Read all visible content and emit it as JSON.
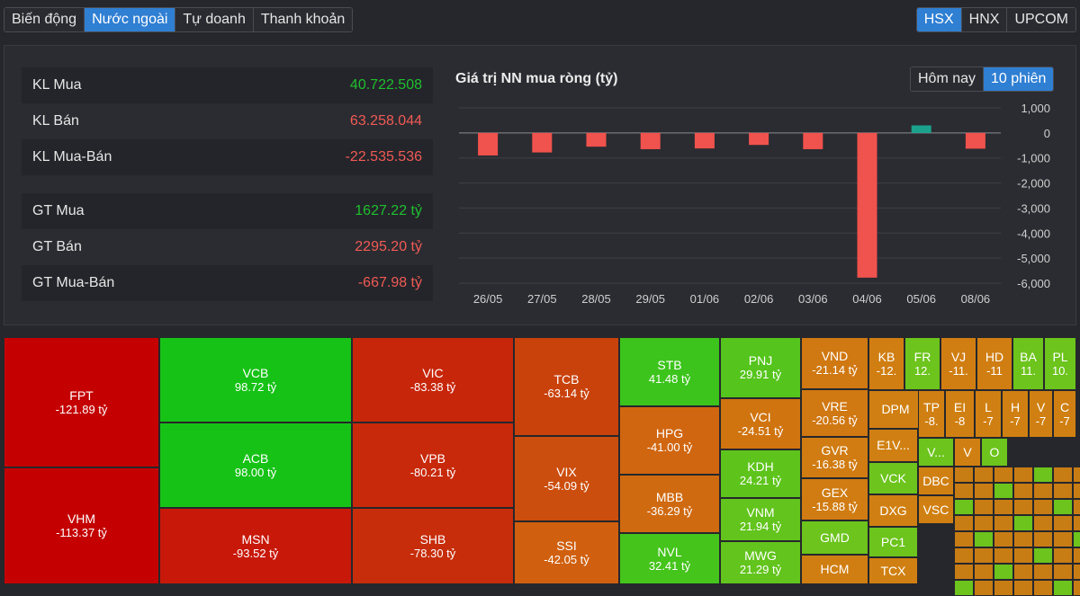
{
  "tabs_left": [
    "Biến động",
    "Nước ngoài",
    "Tự doanh",
    "Thanh khoản"
  ],
  "tabs_left_active": 1,
  "tabs_right": [
    "HSX",
    "HNX",
    "UPCOM"
  ],
  "tabs_right_active": 0,
  "stats": [
    {
      "label": "KL Mua",
      "value": "40.722.508",
      "tone": "green"
    },
    {
      "label": "KL Bán",
      "value": "63.258.044",
      "tone": "red"
    },
    {
      "label": "KL Mua-Bán",
      "value": "-22.535.536",
      "tone": "red"
    },
    {
      "label": "GT Mua",
      "value": "1627.22 tỷ",
      "tone": "green"
    },
    {
      "label": "GT Bán",
      "value": "2295.20 tỷ",
      "tone": "red"
    },
    {
      "label": "GT Mua-Bán",
      "value": "-667.98 tỷ",
      "tone": "red"
    }
  ],
  "range_tabs": [
    "Hôm nay",
    "10 phiên"
  ],
  "range_tabs_active": 1,
  "colors": {
    "negative": "#f0524d",
    "positive": "#1aa28d",
    "grid": "#3f4046",
    "axis_text": "#cfcfcf"
  },
  "chart_data": {
    "type": "bar",
    "title": "Giá trị NN mua ròng (tỷ)",
    "categories": [
      "26/05",
      "27/05",
      "28/05",
      "29/05",
      "01/06",
      "02/06",
      "03/06",
      "04/06",
      "05/06",
      "08/06"
    ],
    "values": [
      -900,
      -780,
      -550,
      -650,
      -620,
      -480,
      -650,
      -5780,
      300,
      -630
    ],
    "ylim": [
      -6000,
      1000
    ],
    "yticks": [
      1000,
      0,
      -1000,
      -2000,
      -3000,
      -4000,
      -5000,
      -6000
    ],
    "ytick_labels": [
      "1,000",
      "0",
      "-1,000",
      "-2,000",
      "-3,000",
      "-4,000",
      "-5,000",
      "-6,000"
    ],
    "grid": true,
    "y_axis_side": "right"
  },
  "treemap": [
    {
      "ticker": "FPT",
      "value": "-121.89 tỷ",
      "color": "#c40000"
    },
    {
      "ticker": "VHM",
      "value": "-113.37 tỷ",
      "color": "#c40000"
    },
    {
      "ticker": "VCB",
      "value": "98.72 tỷ",
      "color": "#17c217"
    },
    {
      "ticker": "ACB",
      "value": "98.00 tỷ",
      "color": "#17c217"
    },
    {
      "ticker": "MSN",
      "value": "-93.52 tỷ",
      "color": "#c8180a"
    },
    {
      "ticker": "VIC",
      "value": "-83.38 tỷ",
      "color": "#c7260a"
    },
    {
      "ticker": "VPB",
      "value": "-80.21 tỷ",
      "color": "#c7290a"
    },
    {
      "ticker": "SHB",
      "value": "-78.30 tỷ",
      "color": "#c72d0a"
    },
    {
      "ticker": "TCB",
      "value": "-63.14 tỷ",
      "color": "#c9420c"
    },
    {
      "ticker": "VIX",
      "value": "-54.09 tỷ",
      "color": "#cc4e0e"
    },
    {
      "ticker": "SSI",
      "value": "-42.05 tỷ",
      "color": "#d0600f"
    },
    {
      "ticker": "STB",
      "value": "41.48 tỷ",
      "color": "#3cc41c"
    },
    {
      "ticker": "HPG",
      "value": "-41.00 tỷ",
      "color": "#d06610"
    },
    {
      "ticker": "MBB",
      "value": "-36.29 tỷ",
      "color": "#d06a10"
    },
    {
      "ticker": "NVL",
      "value": "32.41 tỷ",
      "color": "#45c41c"
    },
    {
      "ticker": "PNJ",
      "value": "29.91 tỷ",
      "color": "#55c41c"
    },
    {
      "ticker": "VCI",
      "value": "-24.51 tỷ",
      "color": "#d07410"
    },
    {
      "ticker": "KDH",
      "value": "24.21 tỷ",
      "color": "#5ec41c"
    },
    {
      "ticker": "VNM",
      "value": "21.94 tỷ",
      "color": "#62c41c"
    },
    {
      "ticker": "MWG",
      "value": "21.29 tỷ",
      "color": "#62c41c"
    },
    {
      "ticker": "VND",
      "value": "-21.14 tỷ",
      "color": "#d07812"
    },
    {
      "ticker": "VRE",
      "value": "-20.56 tỷ",
      "color": "#d07812"
    },
    {
      "ticker": "GVR",
      "value": "-16.38 tỷ",
      "color": "#d07c12"
    },
    {
      "ticker": "GEX",
      "value": "-15.88 tỷ",
      "color": "#d07c12"
    },
    {
      "ticker": "GMD",
      "value": "",
      "color": "#6cc41c"
    },
    {
      "ticker": "HCM",
      "value": "",
      "color": "#d07e12"
    },
    {
      "ticker": "KB",
      "value": "-12.",
      "color": "#d07e12"
    },
    {
      "ticker": "FR",
      "value": "12.",
      "color": "#6cc41c"
    },
    {
      "ticker": "VJ",
      "value": "-11.",
      "color": "#d07e12"
    },
    {
      "ticker": "HD",
      "value": "-11",
      "color": "#d07e12"
    },
    {
      "ticker": "BA",
      "value": "11.",
      "color": "#6cc41c"
    },
    {
      "ticker": "PL",
      "value": "10.",
      "color": "#6cc41c"
    },
    {
      "ticker": "DPM",
      "value": "",
      "color": "#d08012"
    },
    {
      "ticker": "TP",
      "value": "-8.",
      "color": "#d08012"
    },
    {
      "ticker": "EI",
      "value": "-8",
      "color": "#d08012"
    },
    {
      "ticker": "L",
      "value": "-7",
      "color": "#d08012"
    },
    {
      "ticker": "H",
      "value": "-7",
      "color": "#d08012"
    },
    {
      "ticker": "V",
      "value": "-7",
      "color": "#d08012"
    },
    {
      "ticker": "C",
      "value": "-7",
      "color": "#d08012"
    },
    {
      "ticker": "E1V...",
      "value": "",
      "color": "#d08012"
    },
    {
      "ticker": "V...",
      "value": "",
      "color": "#6cc41c"
    },
    {
      "ticker": "V",
      "value": "",
      "color": "#d08012"
    },
    {
      "ticker": "O",
      "value": "",
      "color": "#6cc41c"
    },
    {
      "ticker": "VCK",
      "value": "",
      "color": "#6cc41c"
    },
    {
      "ticker": "DBC",
      "value": "",
      "color": "#d08012"
    },
    {
      "ticker": "DXG",
      "value": "",
      "color": "#d08012"
    },
    {
      "ticker": "VSC",
      "value": "",
      "color": "#d08012"
    },
    {
      "ticker": "PC1",
      "value": "",
      "color": "#6cc41c"
    },
    {
      "ticker": "TCX",
      "value": "",
      "color": "#d08012"
    }
  ]
}
